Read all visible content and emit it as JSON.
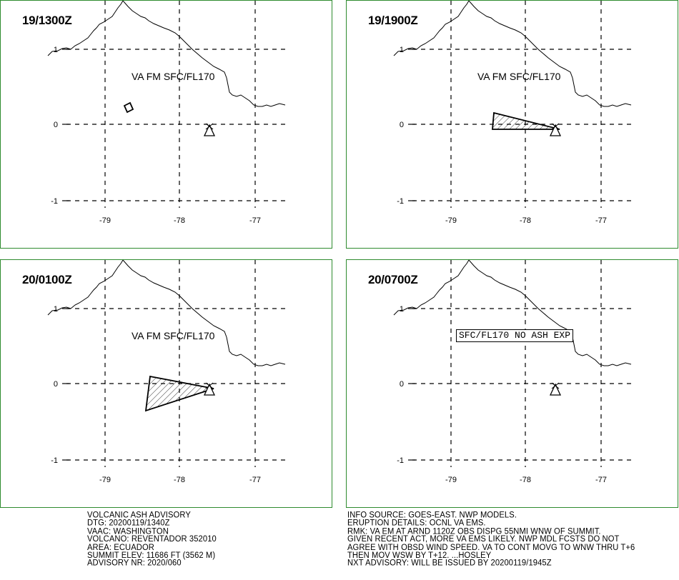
{
  "panels": [
    {
      "time": "19/1300Z",
      "level_label": "VA FM SFC/FL170",
      "ash": "small"
    },
    {
      "time": "19/1900Z",
      "level_label": "VA FM SFC/FL170",
      "ash": "wedge"
    },
    {
      "time": "20/0100Z",
      "level_label": "VA FM SFC/FL170",
      "ash": "large"
    },
    {
      "time": "20/0700Z",
      "level_label": "SFC/FL170 NO ASH EXP",
      "ash": "none"
    }
  ],
  "map": {
    "lon_labels": [
      "-79",
      "-78",
      "-77"
    ],
    "lat_labels": [
      "1",
      "0",
      "-1"
    ],
    "volcano_icon": "volcano-triangle-icon",
    "colors": {
      "border": "#2e8b2e",
      "ink": "#000000"
    }
  },
  "advisory_left": [
    "VOLCANIC ASH ADVISORY",
    "DTG: 20200119/1340Z",
    "VAAC: WASHINGTON",
    "VOLCANO: REVENTADOR 352010",
    "AREA: ECUADOR",
    "SUMMIT ELEV: 11686 FT (3562 M)",
    "ADVISORY NR: 2020/060"
  ],
  "advisory_right": [
    "INFO SOURCE: GOES-EAST. NWP MODELS.",
    "ERUPTION DETAILS: OCNL VA EMS.",
    "RMK: VA EM AT ARND 1120Z OBS DISPG 55NMI WNW OF SUMMIT.",
    "GIVEN RECENT ACT, MORE VA EMS LIKELY. NWP MDL FCSTS DO NOT",
    "AGREE WITH OBSD WIND SPEED. VA TO CONT MOVG TO WNW THRU T+6",
    "THEN MOV WSW BY T+12. ...HOSLEY",
    "NXT ADVISORY: WILL BE ISSUED BY 20200119/1945Z"
  ]
}
